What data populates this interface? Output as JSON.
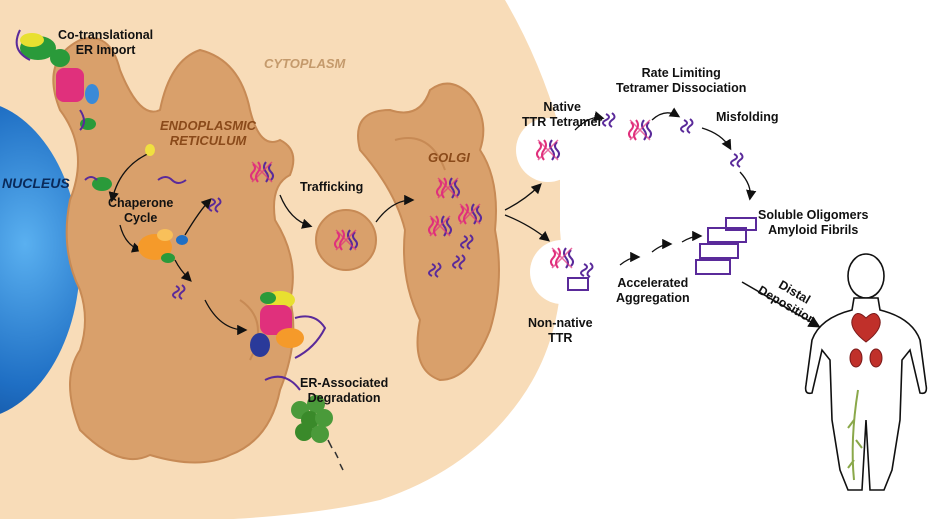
{
  "labels": {
    "co_translational_1": "Co-translational",
    "co_translational_2": "ER Import",
    "cytoplasm": "CYTOPLASM",
    "er_1": "ENDOPLASMIC",
    "er_2": "RETICULUM",
    "nucleus": "NUCLEUS",
    "chaperone_1": "Chaperone",
    "chaperone_2": "Cycle",
    "trafficking": "Trafficking",
    "golgi": "GOLGI",
    "native_1": "Native",
    "native_2": "TTR Tetramer",
    "rate_1": "Rate Limiting",
    "rate_2": "Tetramer Dissociation",
    "misfolding": "Misfolding",
    "soluble_1": "Soluble Oligomers",
    "soluble_2": "Amyloid Fibrils",
    "distal_1": "Distal",
    "distal_2": "Deposition",
    "accelerated_1": "Accelerated",
    "accelerated_2": "Aggregation",
    "nonnative_1": "Non-native",
    "nonnative_2": "TTR",
    "erad_1": "ER-Associated",
    "erad_2": "Degradation"
  },
  "colors": {
    "cytoplasm": "#f8dcb8",
    "er": "#d9a06b",
    "er_outline": "#c78a55",
    "nucleus": "#1f6fc4",
    "ttr_pink": "#e0307c",
    "ttr_purple": "#5a2a9a",
    "chaperone_green": "#3aa83a",
    "chaperone_orange": "#f59a2a",
    "proteasome_green": "#4a9a3a",
    "organ_red": "#c0302a"
  },
  "icons": [
    "ribosome-icon",
    "translocon-icon",
    "chaperone-icon",
    "proteasome-icon",
    "ttr-tetramer-icon",
    "ttr-monomer-icon",
    "fibril-icon",
    "human-body-icon",
    "heart-icon",
    "kidney-icon",
    "nerve-icon"
  ]
}
